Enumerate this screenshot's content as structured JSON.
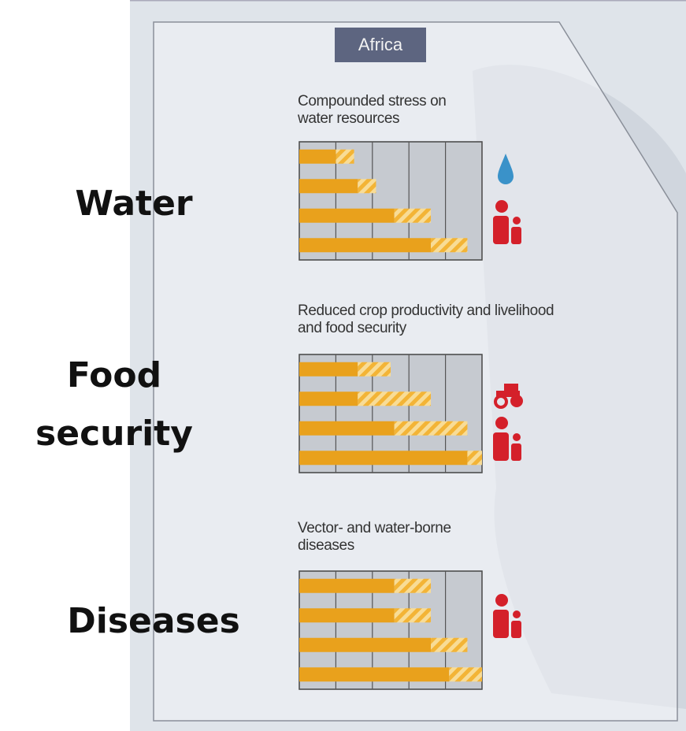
{
  "region": "Africa",
  "labels": [
    "Water",
    "Food security",
    "Diseases"
  ],
  "chart_data": [
    {
      "type": "bar",
      "orientation": "horizontal",
      "title": "Compounded stress on water resources",
      "categories": [
        null,
        null,
        null,
        null
      ],
      "series": [
        {
          "color": "#e9a11c",
          "values": [
            1,
            1.6,
            2.6,
            3.6
          ]
        },
        {
          "color": "#f3b436",
          "hatched": true,
          "values": [
            0.5,
            0.5,
            1,
            1
          ]
        }
      ],
      "xlim": [
        0,
        5
      ],
      "xticks": [
        0,
        1,
        2,
        3,
        4,
        5
      ]
    },
    {
      "type": "bar",
      "orientation": "horizontal",
      "title": "Reduced crop productivity and livelihood and food security",
      "categories": [
        null,
        null,
        null,
        null
      ],
      "series": [
        {
          "color": "#e9a11c",
          "values": [
            1.6,
            1.6,
            2.6,
            4.6
          ]
        },
        {
          "color": "#f3b436",
          "hatched": true,
          "values": [
            0.9,
            2,
            2,
            0.4
          ]
        }
      ],
      "xlim": [
        0,
        5
      ],
      "xticks": [
        0,
        1,
        2,
        3,
        4,
        5
      ]
    },
    {
      "type": "bar",
      "orientation": "horizontal",
      "title": "Vector- and water-borne diseases",
      "categories": [
        null,
        null,
        null,
        null
      ],
      "series": [
        {
          "color": "#e9a11c",
          "values": [
            2.6,
            2.6,
            3.6,
            4.1
          ]
        },
        {
          "color": "#f3b436",
          "hatched": true,
          "values": [
            1,
            1,
            1,
            0.9
          ]
        }
      ],
      "xlim": [
        0,
        5
      ],
      "xticks": [
        0,
        1,
        2,
        3,
        4,
        5
      ]
    }
  ]
}
